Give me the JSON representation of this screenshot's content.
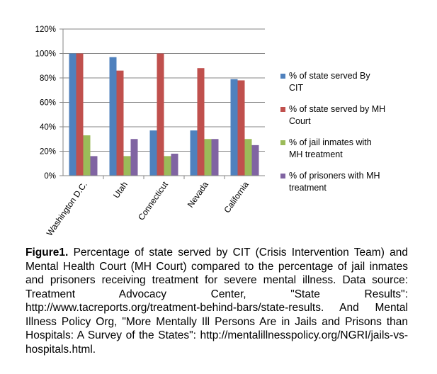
{
  "chart_data": {
    "type": "bar",
    "categories": [
      "Washington D.C.",
      "Utah",
      "Connecticut",
      "Nevada",
      "California"
    ],
    "series": [
      {
        "name": "% of state served By CIT",
        "color": "#4f81bd",
        "values": [
          100,
          97,
          37,
          37,
          79
        ]
      },
      {
        "name": "% of state served by MH Court",
        "color": "#c0504d",
        "values": [
          100,
          86,
          100,
          88,
          78
        ]
      },
      {
        "name": "% of jail inmates with MH treatment",
        "color": "#9bbb59",
        "values": [
          33,
          16,
          16,
          30,
          30
        ]
      },
      {
        "name": "% of prisoners with MH treatment",
        "color": "#8064a2",
        "values": [
          16,
          30,
          18,
          30,
          25
        ]
      }
    ],
    "yticks": [
      "0%",
      "20%",
      "40%",
      "60%",
      "80%",
      "100%",
      "120%"
    ],
    "ylim": [
      0,
      120
    ],
    "grid": true,
    "legend": "right"
  },
  "caption": {
    "label": "Figure1.",
    "text": " Percentage of state served by CIT (Crisis Intervention Team) and Mental Health Court (MH Court) compared to the percentage of jail inmates and prisoners receiving treatment for severe mental illness. Data source: Treatment Advocacy Center, \"State Results\": http://www.tacreports.org/treatment-behind-bars/state-results. And Mental Illness Policy Org, \"More Mentally Ill Persons Are in Jails and Prisons than Hospitals: A Survey of the States\": http://mentalillnesspolicy.org/NGRI/jails-vs-hospitals.html."
  }
}
